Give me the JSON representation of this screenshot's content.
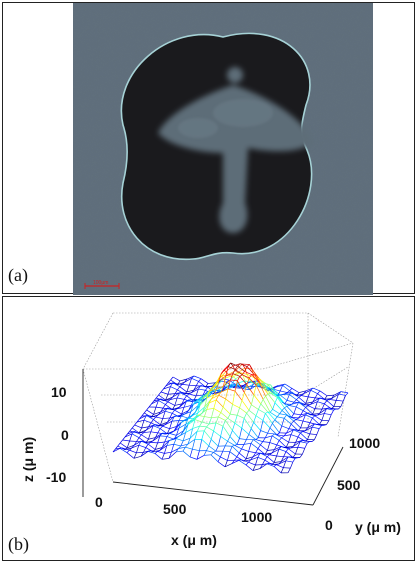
{
  "panel_a": {
    "label": "(a)",
    "scale_bar_label": "100μm",
    "colors": {
      "background": "#5f6e7b",
      "shape": "#1a1a1d",
      "inner_pattern": "#5d6d78",
      "outline": "#a6d2d6",
      "scale_bar": "#cc2222"
    }
  },
  "panel_b": {
    "label": "(b)",
    "xlabel": "x (μ m)",
    "ylabel": "y (μ m)",
    "zlabel": "z (μ m)",
    "x_ticks": [
      "0",
      "500",
      "1000"
    ],
    "y_ticks": [
      "0",
      "500",
      "1000"
    ],
    "z_ticks": [
      "10",
      "0",
      "-10"
    ],
    "colormap": "jet"
  },
  "chart_data": {
    "type": "surface3d",
    "xlabel": "x (μ m)",
    "ylabel": "y (μ m)",
    "zlabel": "z (μ m)",
    "xlim": [
      0,
      1300
    ],
    "ylim": [
      0,
      1300
    ],
    "zlim": [
      -10,
      15
    ],
    "x_ticks": [
      0,
      500,
      1000
    ],
    "y_ticks": [
      0,
      500,
      1000
    ],
    "z_ticks": [
      -10,
      0,
      10
    ],
    "grid": true,
    "peak_height_approx": 13
  }
}
